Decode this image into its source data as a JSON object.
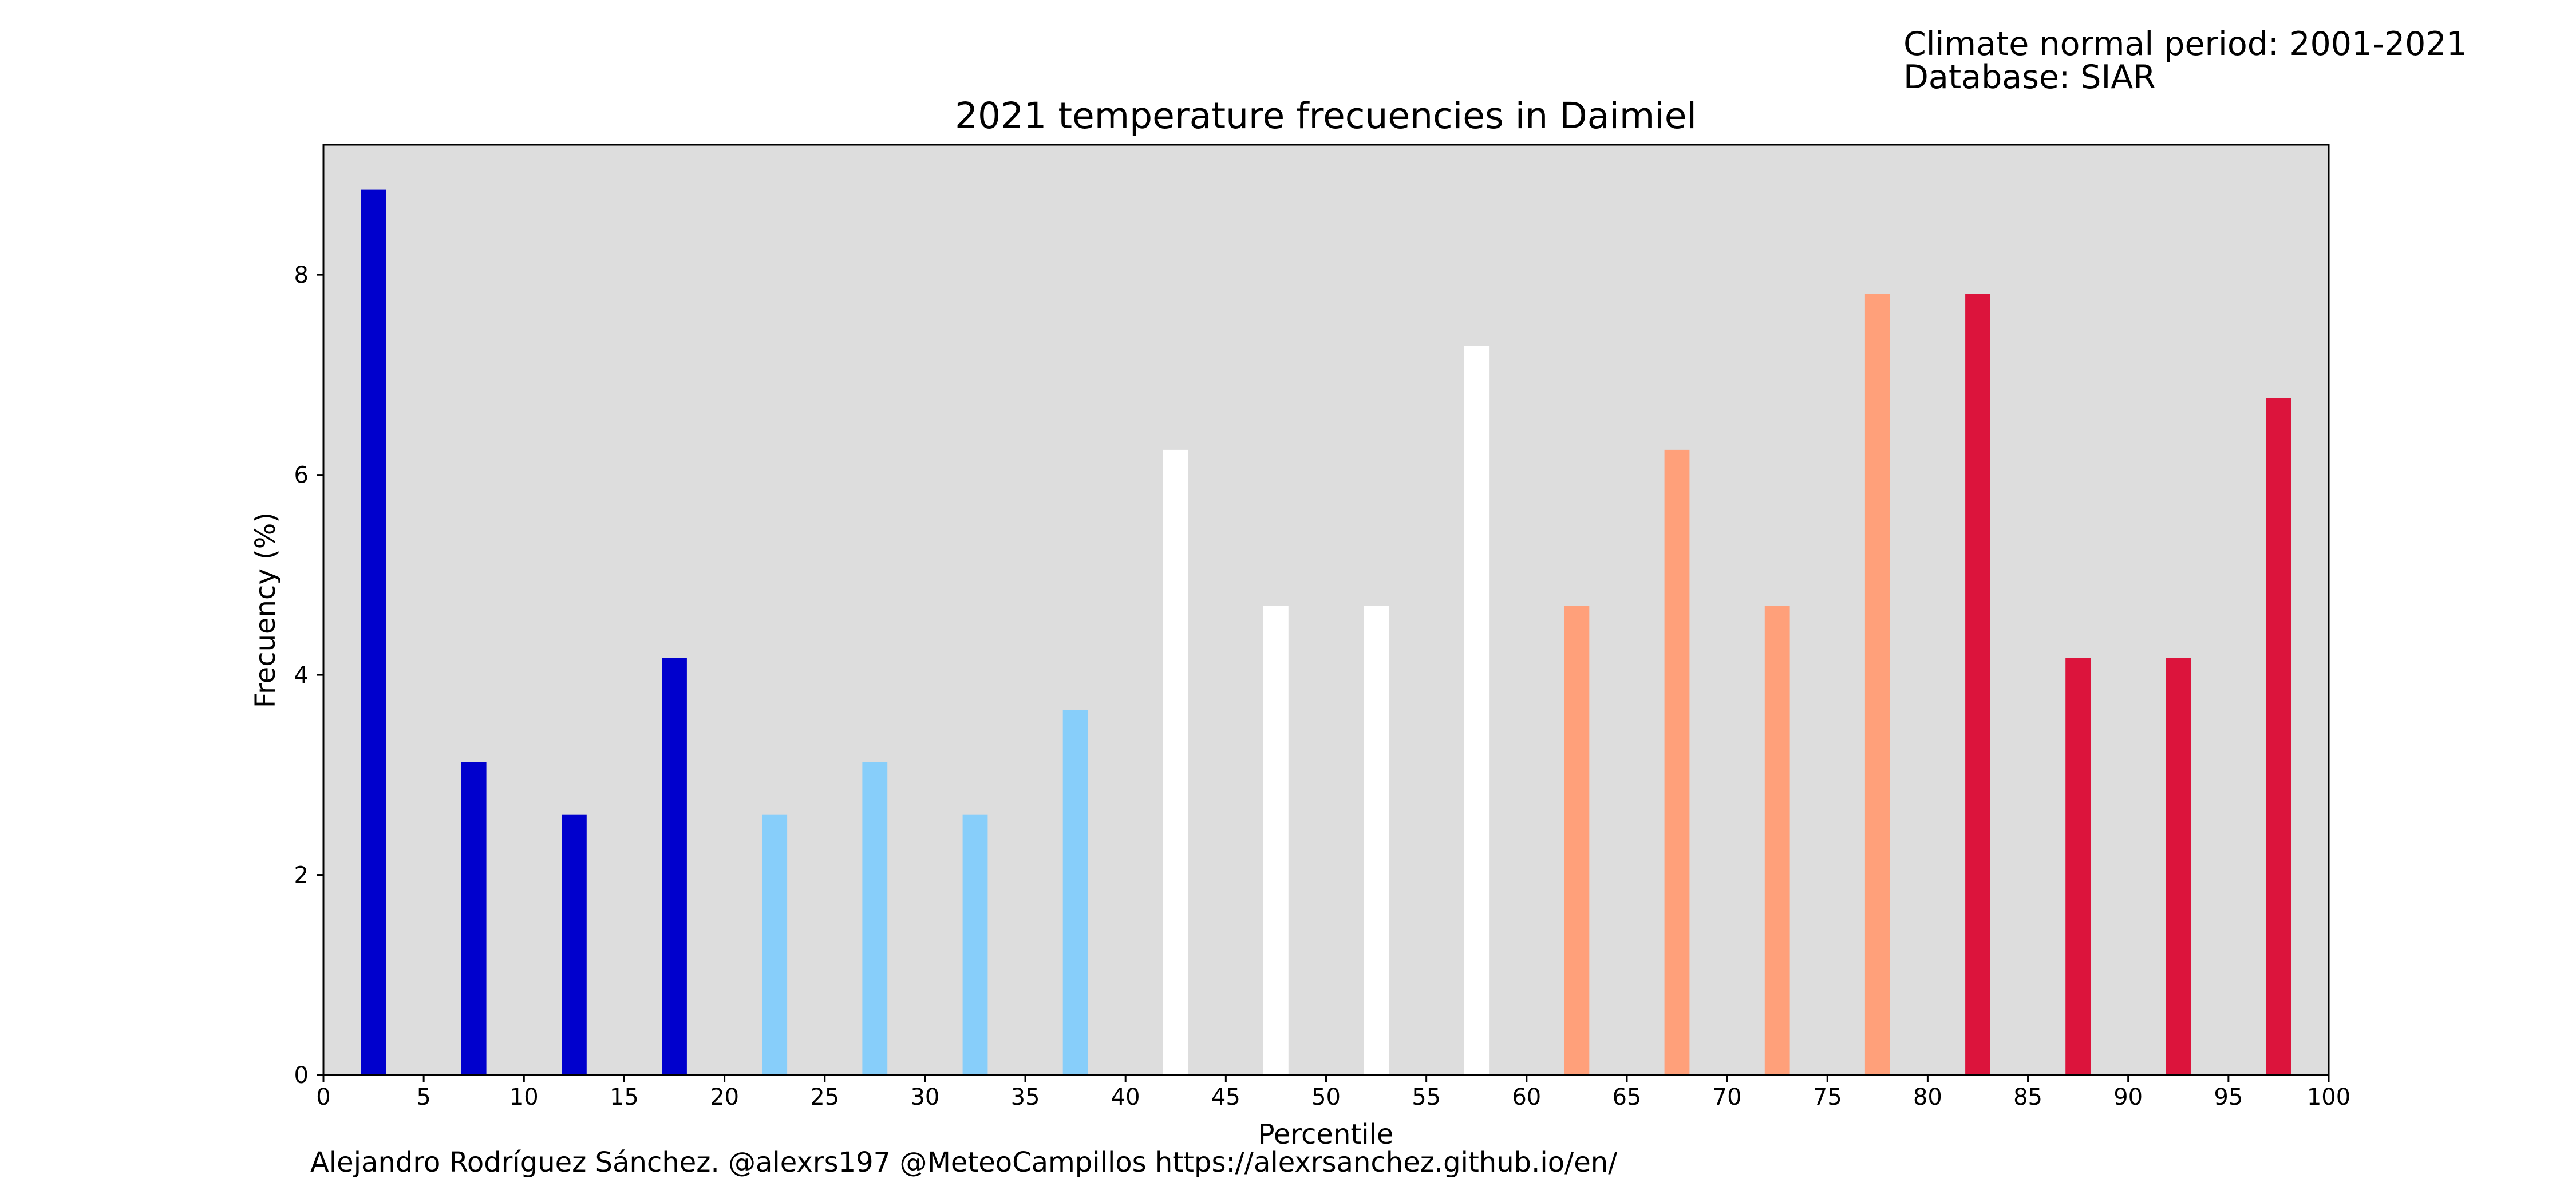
{
  "info": {
    "line1": "Climate normal period: 2001-2021",
    "line2": "Database: SIAR"
  },
  "credit": "Alejandro Rodríguez Sánchez. @alexrs197 @MeteoCampillos   https://alexrsanchez.github.io/en/",
  "chart_data": {
    "type": "bar",
    "title": "2021 temperature frecuencies in Daimiel",
    "xlabel": "Percentile",
    "ylabel": "Frecuency (%)",
    "xlim": [
      0,
      100
    ],
    "ylim": [
      0,
      9.3
    ],
    "xticks": [
      0,
      5,
      10,
      15,
      20,
      25,
      30,
      35,
      40,
      45,
      50,
      55,
      60,
      65,
      70,
      75,
      80,
      85,
      90,
      95,
      100
    ],
    "yticks": [
      0,
      2,
      4,
      6,
      8
    ],
    "bar_width": 1.25,
    "plot_background": "#dddddd",
    "x": [
      2.5,
      7.5,
      12.5,
      17.5,
      22.5,
      27.5,
      32.5,
      37.5,
      42.5,
      47.5,
      52.5,
      57.5,
      62.5,
      67.5,
      72.5,
      77.5,
      82.5,
      87.5,
      92.5,
      97.5
    ],
    "values": [
      8.85,
      3.13,
      2.6,
      4.17,
      2.6,
      3.13,
      2.6,
      3.65,
      6.25,
      4.69,
      4.69,
      7.29,
      4.69,
      6.25,
      4.69,
      7.81,
      7.81,
      4.17,
      4.17,
      6.77
    ],
    "colors": [
      "#0000cd",
      "#0000cd",
      "#0000cd",
      "#0000cd",
      "#87cefa",
      "#87cefa",
      "#87cefa",
      "#87cefa",
      "#ffffff",
      "#ffffff",
      "#ffffff",
      "#ffffff",
      "#ffa07a",
      "#ffa07a",
      "#ffa07a",
      "#ffa07a",
      "#dc143c",
      "#dc143c",
      "#dc143c",
      "#dc143c"
    ],
    "grid": false,
    "legend": "none"
  }
}
